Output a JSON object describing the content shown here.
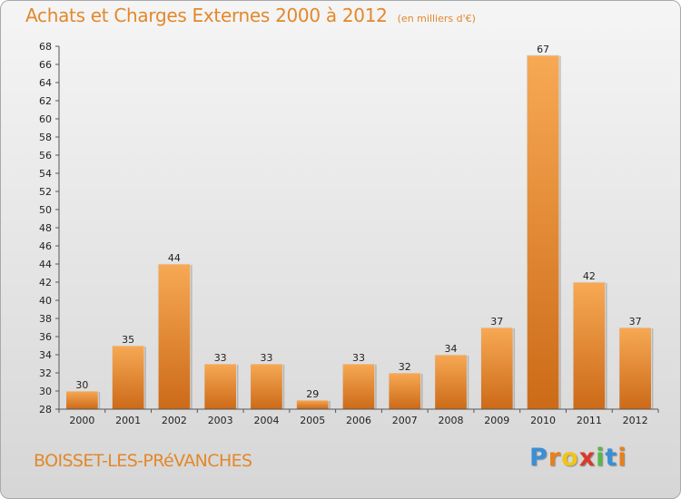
{
  "chart_data": {
    "type": "bar",
    "title": "Achats et Charges Externes 2000 à 2012",
    "subtitle": "(en milliers d'€)",
    "categories": [
      "2000",
      "2001",
      "2002",
      "2003",
      "2004",
      "2005",
      "2006",
      "2007",
      "2008",
      "2009",
      "2010",
      "2011",
      "2012"
    ],
    "values": [
      30,
      35,
      44,
      33,
      33,
      29,
      33,
      32,
      34,
      37,
      67,
      42,
      37
    ],
    "ylim": [
      28,
      68
    ],
    "ytick_step": 2,
    "grid": false,
    "bar_color_top": "#f7a954",
    "bar_color_bottom": "#cc6a18"
  },
  "place_name": "BOISSET-LES-PRéVANCHES",
  "logo": {
    "letters": [
      "P",
      "r",
      "o",
      "x",
      "i",
      "t",
      "i"
    ],
    "colors": [
      "#3a8fd6",
      "#e8801c",
      "#f2c418",
      "#d83a2a",
      "#58b847",
      "#3a8fd6",
      "#e8801c"
    ]
  }
}
